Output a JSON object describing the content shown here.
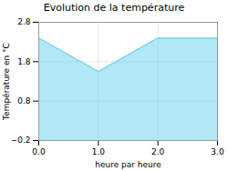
{
  "chart_data": {
    "type": "area",
    "title": "Evolution de la température",
    "xlabel": "heure par heure",
    "ylabel": "Température en °C",
    "x": [
      0,
      1,
      2,
      3
    ],
    "values": [
      2.4,
      1.55,
      2.4,
      2.4
    ],
    "xlim": [
      0,
      3
    ],
    "ylim": [
      -0.2,
      2.8
    ],
    "xticks": [
      0,
      1,
      2,
      3
    ],
    "yticks": [
      -0.2,
      0.8,
      1.8,
      2.8
    ],
    "color": "#7dd8ef",
    "grid": true
  }
}
